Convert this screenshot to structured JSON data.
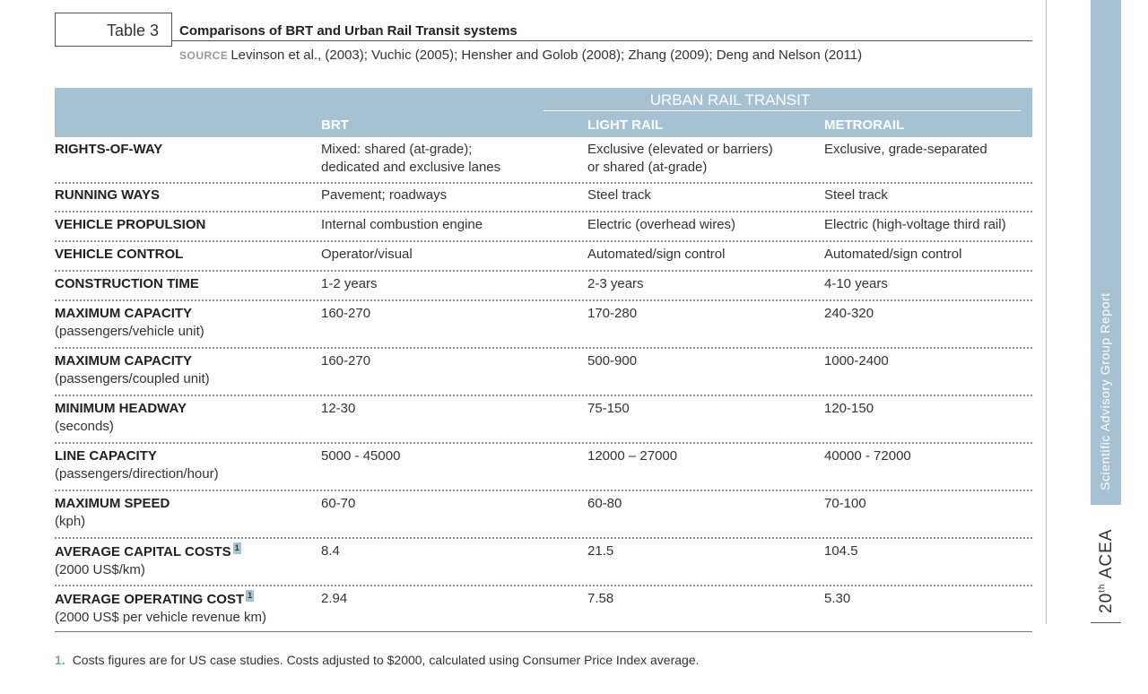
{
  "table_label": "Table 3",
  "title": "Comparisons of BRT and Urban Rail Transit systems",
  "source_label": "SOURCE",
  "source_text": "Levinson et al., (2003); Vuchic (2005); Hensher and Golob (2008); Zhang (2009); Deng and Nelson (2011)",
  "group_header": "URBAN RAIL TRANSIT",
  "columns": [
    "BRT",
    "LIGHT RAIL",
    "METRORAIL"
  ],
  "rows": [
    {
      "label": "RIGHTS-OF-WAY",
      "sub": "",
      "sup": "",
      "brt": [
        "Mixed: shared (at-grade);",
        "dedicated and exclusive lanes"
      ],
      "light_rail": [
        "Exclusive (elevated or barriers)",
        "or shared (at-grade)"
      ],
      "metrorail": "Exclusive, grade-separated"
    },
    {
      "label": "RUNNING WAYS",
      "sub": "",
      "sup": "",
      "brt": "Pavement; roadways",
      "light_rail": "Steel track",
      "metrorail": "Steel track"
    },
    {
      "label": "VEHICLE PROPULSION",
      "sub": "",
      "sup": "",
      "brt": "Internal combustion engine",
      "light_rail": "Electric (overhead wires)",
      "metrorail": "Electric (high-voltage third rail)"
    },
    {
      "label": "VEHICLE CONTROL",
      "sub": "",
      "sup": "",
      "brt": "Operator/visual",
      "light_rail": "Automated/sign control",
      "metrorail": "Automated/sign control"
    },
    {
      "label": "CONSTRUCTION TIME",
      "sub": "",
      "sup": "",
      "brt": "1-2 years",
      "light_rail": "2-3 years",
      "metrorail": "4-10 years"
    },
    {
      "label": "MAXIMUM CAPACITY",
      "sub": "(passengers/vehicle unit)",
      "sup": "",
      "brt": "160-270",
      "light_rail": "170-280",
      "metrorail": "240-320"
    },
    {
      "label": "MAXIMUM CAPACITY",
      "sub": "(passengers/coupled unit)",
      "sup": "",
      "brt": "160-270",
      "light_rail": "500-900",
      "metrorail": "1000-2400"
    },
    {
      "label": "MINIMUM HEADWAY",
      "sub": "(seconds)",
      "sup": "",
      "brt": "12-30",
      "light_rail": "75-150",
      "metrorail": "120-150"
    },
    {
      "label": "LINE CAPACITY",
      "sub": "(passengers/direction/hour)",
      "sup": "",
      "brt": "5000 - 45000",
      "light_rail": "12000 – 27000",
      "metrorail": "40000 - 72000"
    },
    {
      "label": "MAXIMUM SPEED",
      "sub": "(kph)",
      "sup": "",
      "brt": "60-70",
      "light_rail": "60-80",
      "metrorail": "70-100"
    },
    {
      "label": "AVERAGE CAPITAL COSTS",
      "sub": "(2000 US$/km)",
      "sup": "1",
      "brt": "8.4",
      "light_rail": "21.5",
      "metrorail": "104.5"
    },
    {
      "label": "AVERAGE OPERATING COST",
      "sub": "(2000 US$ per vehicle revenue km)",
      "sup": "1",
      "brt": "2.94",
      "light_rail": "7.58",
      "metrorail": "5.30"
    }
  ],
  "footnote_number": "1.",
  "footnote_text": "Costs figures are for US case studies. Costs adjusted to $2000, calculated using Consumer Price Index average.",
  "side_label": "Scientific Advisory Group Report",
  "side_edition_num": "20",
  "side_edition_sup": "th",
  "side_edition_name": "ACEA",
  "colors": {
    "header_band": "#a6c2d2",
    "footnote_number": "#7aa6bf"
  }
}
